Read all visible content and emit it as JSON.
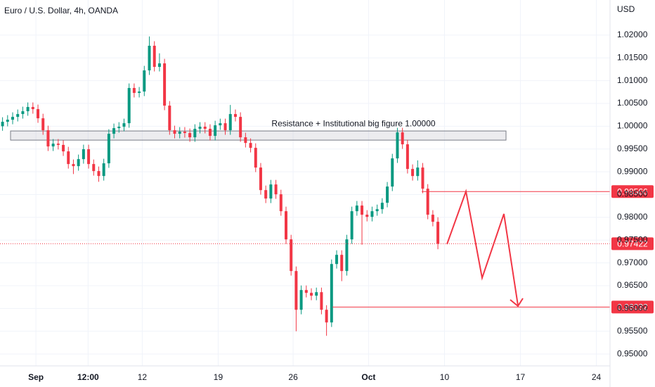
{
  "chart_data": {
    "type": "candlestick",
    "title": "Euro / U.S. Dollar, 4h, OANDA",
    "currency": "USD",
    "open": [
      1.0,
      1.00097,
      1.00143,
      1.00205,
      1.00267,
      1.00329,
      1.00422,
      1.00375,
      1.00174,
      0.99912,
      0.99556,
      0.99618,
      0.9959,
      0.99448,
      0.9917,
      0.99124,
      0.99278,
      0.99495,
      0.9917,
      0.99016,
      0.98907,
      0.99186,
      0.99834,
      0.99958,
      0.99989,
      1.00066,
      1.00839,
      1.00731,
      1.00761,
      1.01225,
      1.01766,
      1.01302,
      1.01379,
      1.00452,
      0.99912,
      0.99834,
      0.99881,
      0.9985,
      0.99757,
      0.99943,
      0.99989,
      0.99943,
      0.99788,
      1.0002,
      1.00066,
      0.99912,
      1.00267,
      1.00205,
      0.99757,
      0.99633,
      0.99525,
      0.99093,
      0.98598,
      0.98413,
      0.98722,
      0.98506,
      0.98135,
      0.97517,
      0.96822,
      0.95972,
      0.96405,
      0.96343,
      0.96281,
      0.96358,
      0.95972,
      0.95694,
      0.96976,
      0.97177,
      0.96822,
      0.97517,
      0.98135,
      0.98259,
      0.98058,
      0.98011,
      0.98135,
      0.9818,
      0.9832,
      0.98676,
      0.99294,
      0.99865,
      0.99603,
      0.99062,
      0.98907,
      0.99093,
      0.98629,
      0.98058,
      0.97903
    ],
    "high": [
      1.00197,
      1.00243,
      1.00305,
      1.00367,
      1.00429,
      1.00522,
      1.00522,
      1.00475,
      1.00274,
      1.00012,
      0.99718,
      0.99718,
      0.9969,
      0.99548,
      0.9927,
      0.99378,
      0.99595,
      0.99595,
      0.9927,
      0.99116,
      0.99286,
      0.99934,
      1.00058,
      1.00089,
      1.00166,
      1.00939,
      1.00939,
      1.00861,
      1.01325,
      1.0197,
      1.01866,
      1.016,
      1.01479,
      1.00552,
      1.00012,
      0.99981,
      0.99981,
      0.9995,
      1.00043,
      1.00089,
      1.00089,
      1.00043,
      1.0012,
      1.00166,
      1.00166,
      1.00467,
      1.00367,
      1.00305,
      0.99857,
      0.99733,
      0.99625,
      0.99193,
      0.98698,
      0.98822,
      0.98822,
      0.98606,
      0.98235,
      0.97617,
      0.96922,
      0.96505,
      0.96505,
      0.96443,
      0.96458,
      0.96458,
      0.96072,
      0.97076,
      0.97277,
      0.97277,
      0.97617,
      0.98235,
      0.98359,
      0.98359,
      0.98158,
      0.98235,
      0.9828,
      0.9842,
      0.98776,
      0.99394,
      0.99965,
      0.99965,
      0.99703,
      0.99162,
      0.9925,
      0.99193,
      0.98729,
      0.98158,
      0.98003
    ],
    "low": [
      0.999,
      0.99997,
      1.00043,
      1.00105,
      1.00167,
      1.00229,
      1.00275,
      1.00074,
      0.99812,
      0.99456,
      0.99456,
      0.9949,
      0.99348,
      0.9907,
      0.9895,
      0.99024,
      0.99178,
      0.9907,
      0.98916,
      0.9878,
      0.98807,
      0.99086,
      0.99734,
      0.99858,
      0.99889,
      0.99966,
      1.00631,
      1.00631,
      1.00661,
      1.01125,
      1.01202,
      1.01202,
      1.00352,
      0.99812,
      0.99734,
      0.99734,
      0.9975,
      0.99657,
      0.99657,
      0.99843,
      0.99843,
      0.99688,
      0.99688,
      0.9992,
      0.99812,
      0.99812,
      1.00105,
      0.99657,
      0.99533,
      0.99425,
      0.98993,
      0.98498,
      0.98313,
      0.98313,
      0.98406,
      0.98035,
      0.97417,
      0.96722,
      0.955,
      0.95872,
      0.96243,
      0.96181,
      0.96181,
      0.95872,
      0.954,
      0.95594,
      0.96876,
      0.966,
      0.96722,
      0.97417,
      0.98035,
      0.974,
      0.97911,
      0.97911,
      0.98035,
      0.9808,
      0.9822,
      0.98576,
      0.99194,
      0.99503,
      0.98962,
      0.98807,
      0.98807,
      0.98529,
      0.97958,
      0.97803,
      0.973
    ],
    "close": [
      1.00097,
      1.00143,
      1.00205,
      1.00267,
      1.00329,
      1.00422,
      1.00375,
      1.00174,
      0.99912,
      0.99556,
      0.99618,
      0.9959,
      0.99448,
      0.9917,
      0.99124,
      0.99278,
      0.99495,
      0.9917,
      0.99016,
      0.98907,
      0.99186,
      0.99834,
      0.99958,
      0.99989,
      1.00066,
      1.00839,
      1.00731,
      1.00761,
      1.01225,
      1.01766,
      1.01302,
      1.01379,
      1.00452,
      0.99912,
      0.99834,
      0.99881,
      0.9985,
      0.99757,
      0.99943,
      0.99989,
      0.99943,
      0.99788,
      1.0002,
      1.00066,
      0.99912,
      1.00267,
      1.00205,
      0.99757,
      0.99633,
      0.99525,
      0.99093,
      0.98598,
      0.98413,
      0.98722,
      0.98506,
      0.98135,
      0.97517,
      0.96822,
      0.95972,
      0.96405,
      0.96343,
      0.96281,
      0.96358,
      0.95972,
      0.95694,
      0.96976,
      0.97177,
      0.96822,
      0.97517,
      0.98135,
      0.98259,
      0.98058,
      0.98011,
      0.98135,
      0.9818,
      0.9832,
      0.98676,
      0.99294,
      0.99865,
      0.99603,
      0.99062,
      0.98907,
      0.99093,
      0.98629,
      0.98058,
      0.97903,
      0.97422
    ],
    "up_color": "#089981",
    "down_color": "#f23645",
    "level_color": "#f23645",
    "xlim": [
      -0.5,
      120
    ],
    "xticks": [
      {
        "value": 6.6,
        "label": "Sep"
      },
      {
        "value": 16.9,
        "label": "12:00"
      },
      {
        "value": 27.6,
        "label": "12"
      },
      {
        "value": 42.6,
        "label": "19"
      },
      {
        "value": 57.4,
        "label": "26"
      },
      {
        "value": 72.3,
        "label": "Oct"
      },
      {
        "value": 87.3,
        "label": "10"
      },
      {
        "value": 102.3,
        "label": "17"
      },
      {
        "value": 117.3,
        "label": "24"
      }
    ],
    "ylim": [
      0.9474,
      1.0277
    ],
    "yticks": [
      {
        "value": 0.95,
        "label": "0.95000"
      },
      {
        "value": 0.955,
        "label": "0.95500"
      },
      {
        "value": 0.96,
        "label": "0.96000"
      },
      {
        "value": 0.965,
        "label": "0.96500"
      },
      {
        "value": 0.97,
        "label": "0.97000"
      },
      {
        "value": 0.975,
        "label": "0.97500"
      },
      {
        "value": 0.98,
        "label": "0.98000"
      },
      {
        "value": 0.985,
        "label": "0.98500"
      },
      {
        "value": 0.99,
        "label": "0.99000"
      },
      {
        "value": 0.995,
        "label": "0.99500"
      },
      {
        "value": 1.0,
        "label": "1.00000"
      },
      {
        "value": 1.005,
        "label": "1.00500"
      },
      {
        "value": 1.01,
        "label": "1.01000"
      },
      {
        "value": 1.015,
        "label": "1.01500"
      },
      {
        "value": 1.02,
        "label": "1.02000"
      }
    ],
    "grid": true,
    "levels": [
      0.98566,
      0.96032
    ],
    "zone": {
      "label": "Resistance + Institutional big figure 1.00000",
      "low": 0.99695,
      "high": 0.99896
    }
  }
}
